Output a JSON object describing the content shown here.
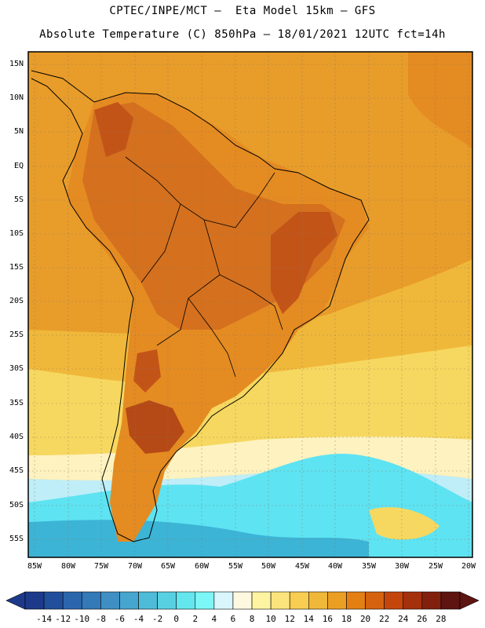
{
  "header": {
    "line1": "CPTEC/INPE/MCT –  Eta Model 15km – GFS",
    "line2": "Absolute Temperature (C) 850hPa – 18/01/2021 12UTC fct=14h"
  },
  "map": {
    "lat_labels": [
      "15N",
      "10N",
      "5N",
      "EQ",
      "5S",
      "10S",
      "15S",
      "20S",
      "25S",
      "30S",
      "35S",
      "40S",
      "45S",
      "50S",
      "55S"
    ],
    "lon_labels": [
      "85W",
      "80W",
      "75W",
      "70W",
      "65W",
      "60W",
      "55W",
      "50W",
      "45W",
      "40W",
      "35W",
      "30W",
      "25W",
      "20W"
    ],
    "colors": {
      "land_hot": "#d4701e",
      "land_very_hot": "#c35418",
      "warm": "#e89c2a",
      "mild": "#f0b83a",
      "yellow": "#f6d860",
      "pale": "#fdf2c0",
      "cool": "#bfeef8",
      "cyan": "#5ee3f2",
      "cold": "#3cb4d6"
    }
  },
  "legend": {
    "labels": [
      "-14",
      "-12",
      "-10",
      "-8",
      "-6",
      "-4",
      "-2",
      "0",
      "2",
      "4",
      "6",
      "8",
      "10",
      "12",
      "14",
      "16",
      "18",
      "20",
      "22",
      "24",
      "26",
      "28"
    ],
    "colors": [
      "#1d3a8a",
      "#214f9c",
      "#2b66ad",
      "#3479b8",
      "#3f8fc4",
      "#46a6cf",
      "#4ebcd8",
      "#57d1e2",
      "#63e6ee",
      "#7cf6f6",
      "#d8f6fc",
      "#fff8e0",
      "#fef3a0",
      "#fce47c",
      "#f7cd52",
      "#f0b83a",
      "#eb9f22",
      "#e47f14",
      "#d5620e",
      "#c4460c",
      "#a5300c",
      "#82200e",
      "#5e1410"
    ]
  }
}
